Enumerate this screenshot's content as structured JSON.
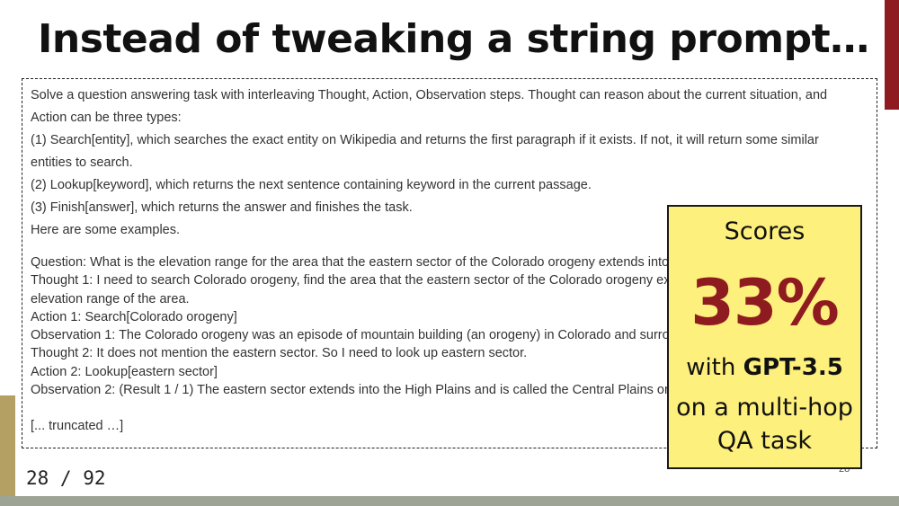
{
  "slide": {
    "title": "Instead of tweaking a string prompt…",
    "page_indicator": "28 / 92",
    "corner_number": "28"
  },
  "prompt": {
    "intro": [
      "Solve a question answering task with interleaving Thought, Action, Observation steps. Thought can reason about the current situation, and",
      "Action can be three types:",
      "(1) Search[entity], which searches the exact entity on Wikipedia and returns the first paragraph if it exists. If not, it will return some similar",
      "entities to search.",
      "(2) Lookup[keyword], which returns the next sentence containing keyword in the current passage.",
      "(3) Finish[answer], which returns the answer and finishes the task.",
      "Here are some examples."
    ],
    "example": [
      "Question: What is the elevation range for the area that the eastern sector of the Colorado orogeny extends into?",
      "Thought 1: I need to search Colorado orogeny, find the area that the eastern sector of the Colorado orogeny extends into, then find the",
      "elevation range of the area.",
      "Action 1: Search[Colorado orogeny]",
      "Observation 1: The Colorado orogeny was an episode of mountain building (an orogeny) in Colorado and surrounding areas.",
      "Thought 2: It does not mention the eastern sector. So I need to look up eastern sector.",
      "Action 2: Lookup[eastern sector]",
      "Observation 2: (Result 1 / 1) The eastern sector extends into the High Plains and is called the Central Plains orogeny."
    ],
    "truncated": "[... truncated …]"
  },
  "callout": {
    "heading": "Scores",
    "percent": "33%",
    "with_prefix": "with ",
    "model": "GPT-3.5",
    "task_line1": "on a multi-hop",
    "task_line2": "QA task"
  },
  "colors": {
    "accent_red": "#8e1b20",
    "callout_bg": "#fdf07c",
    "left_stripe": "#b5a064",
    "bottom_bar": "#9ea495"
  }
}
